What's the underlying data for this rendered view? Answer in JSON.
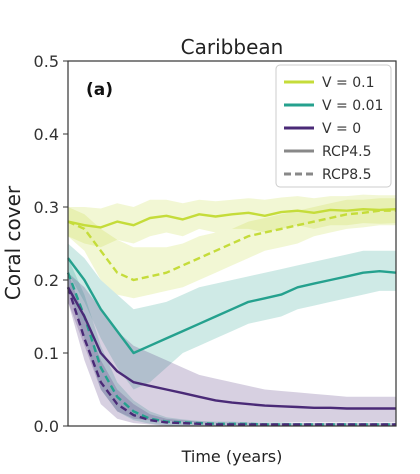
{
  "chart_data": {
    "type": "line",
    "title": "Caribbean",
    "panel_label": "(a)",
    "xlabel": "Time (years)",
    "ylabel": "Coral cover",
    "ylim": [
      0,
      0.5
    ],
    "yticks": [
      "0.0",
      "0.1",
      "0.2",
      "0.3",
      "0.4",
      "0.5"
    ],
    "x": [
      0,
      5,
      10,
      15,
      20,
      25,
      30,
      35,
      40,
      45,
      50,
      55,
      60,
      65,
      70,
      75,
      80,
      85,
      90,
      95,
      100
    ],
    "grid": false,
    "legend_placement": "top-right",
    "legend": [
      {
        "label": "V = 0.1",
        "color": "#c5dc3a",
        "style": "solid"
      },
      {
        "label": "V = 0.01",
        "color": "#25a18e",
        "style": "solid"
      },
      {
        "label": "V = 0",
        "color": "#4a2a77",
        "style": "solid"
      },
      {
        "label": "RCP4.5",
        "color": "#888888",
        "style": "solid"
      },
      {
        "label": "RCP8.5",
        "color": "#888888",
        "style": "dashed"
      }
    ],
    "series": [
      {
        "legend_index": 0,
        "scenario_index": 3,
        "color": "#c5dc3a",
        "dashed": false,
        "values": [
          0.28,
          0.275,
          0.272,
          0.28,
          0.275,
          0.285,
          0.288,
          0.283,
          0.29,
          0.287,
          0.29,
          0.292,
          0.288,
          0.293,
          0.295,
          0.292,
          0.296,
          0.295,
          0.297,
          0.296,
          0.297
        ],
        "lower": [
          0.26,
          0.25,
          0.245,
          0.255,
          0.25,
          0.26,
          0.265,
          0.26,
          0.27,
          0.265,
          0.27,
          0.27,
          0.265,
          0.27,
          0.275,
          0.27,
          0.275,
          0.275,
          0.278,
          0.277,
          0.278
        ],
        "upper": [
          0.3,
          0.3,
          0.298,
          0.305,
          0.3,
          0.31,
          0.31,
          0.305,
          0.31,
          0.308,
          0.31,
          0.312,
          0.31,
          0.313,
          0.315,
          0.312,
          0.315,
          0.315,
          0.317,
          0.316,
          0.316
        ]
      },
      {
        "legend_index": 0,
        "scenario_index": 4,
        "color": "#c5dc3a",
        "dashed": true,
        "values": [
          0.28,
          0.27,
          0.24,
          0.21,
          0.2,
          0.205,
          0.21,
          0.22,
          0.23,
          0.24,
          0.25,
          0.26,
          0.265,
          0.27,
          0.275,
          0.28,
          0.285,
          0.29,
          0.292,
          0.295,
          0.295
        ],
        "lower": [
          0.26,
          0.24,
          0.2,
          0.18,
          0.175,
          0.18,
          0.185,
          0.19,
          0.2,
          0.21,
          0.22,
          0.23,
          0.24,
          0.245,
          0.25,
          0.26,
          0.265,
          0.27,
          0.272,
          0.275,
          0.275
        ],
        "upper": [
          0.3,
          0.29,
          0.27,
          0.255,
          0.245,
          0.245,
          0.245,
          0.25,
          0.26,
          0.265,
          0.27,
          0.28,
          0.285,
          0.29,
          0.295,
          0.3,
          0.305,
          0.31,
          0.31,
          0.312,
          0.312
        ]
      },
      {
        "legend_index": 1,
        "scenario_index": 3,
        "color": "#25a18e",
        "dashed": false,
        "values": [
          0.23,
          0.2,
          0.16,
          0.13,
          0.1,
          0.11,
          0.12,
          0.13,
          0.14,
          0.15,
          0.16,
          0.17,
          0.175,
          0.18,
          0.19,
          0.195,
          0.2,
          0.205,
          0.21,
          0.212,
          0.21
        ],
        "lower": [
          0.21,
          0.17,
          0.12,
          0.08,
          0.05,
          0.06,
          0.08,
          0.1,
          0.11,
          0.12,
          0.13,
          0.14,
          0.145,
          0.15,
          0.16,
          0.165,
          0.17,
          0.175,
          0.18,
          0.185,
          0.185
        ],
        "upper": [
          0.25,
          0.23,
          0.2,
          0.18,
          0.16,
          0.165,
          0.17,
          0.18,
          0.19,
          0.195,
          0.2,
          0.205,
          0.21,
          0.215,
          0.22,
          0.225,
          0.23,
          0.235,
          0.24,
          0.24,
          0.24
        ]
      },
      {
        "legend_index": 1,
        "scenario_index": 4,
        "color": "#25a18e",
        "dashed": true,
        "values": [
          0.21,
          0.15,
          0.08,
          0.04,
          0.02,
          0.01,
          0.006,
          0.005,
          0.004,
          0.003,
          0.003,
          0.003,
          0.002,
          0.002,
          0.002,
          0.002,
          0.002,
          0.002,
          0.002,
          0.002,
          0.002
        ],
        "lower": [
          0.19,
          0.12,
          0.05,
          0.02,
          0.008,
          0.003,
          0.001,
          0.0,
          0.0,
          0.0,
          0.0,
          0.0,
          0.0,
          0.0,
          0.0,
          0.0,
          0.0,
          0.0,
          0.0,
          0.0,
          0.0
        ],
        "upper": [
          0.23,
          0.18,
          0.11,
          0.06,
          0.035,
          0.02,
          0.012,
          0.009,
          0.007,
          0.006,
          0.006,
          0.005,
          0.005,
          0.005,
          0.004,
          0.004,
          0.004,
          0.004,
          0.004,
          0.004,
          0.004
        ]
      },
      {
        "legend_index": 2,
        "scenario_index": 3,
        "color": "#4a2a77",
        "dashed": false,
        "values": [
          0.19,
          0.15,
          0.1,
          0.075,
          0.06,
          0.055,
          0.05,
          0.045,
          0.04,
          0.035,
          0.032,
          0.03,
          0.028,
          0.027,
          0.026,
          0.025,
          0.025,
          0.024,
          0.024,
          0.024,
          0.024
        ],
        "lower": [
          0.17,
          0.11,
          0.05,
          0.02,
          0.01,
          0.008,
          0.007,
          0.006,
          0.005,
          0.005,
          0.005,
          0.005,
          0.005,
          0.005,
          0.005,
          0.005,
          0.005,
          0.005,
          0.005,
          0.005,
          0.005
        ],
        "upper": [
          0.21,
          0.19,
          0.16,
          0.13,
          0.11,
          0.1,
          0.09,
          0.08,
          0.07,
          0.065,
          0.06,
          0.055,
          0.05,
          0.048,
          0.046,
          0.044,
          0.042,
          0.04,
          0.04,
          0.04,
          0.04
        ]
      },
      {
        "legend_index": 2,
        "scenario_index": 4,
        "color": "#4a2a77",
        "dashed": true,
        "values": [
          0.19,
          0.12,
          0.06,
          0.03,
          0.015,
          0.008,
          0.005,
          0.004,
          0.003,
          0.002,
          0.002,
          0.002,
          0.002,
          0.002,
          0.002,
          0.002,
          0.002,
          0.002,
          0.002,
          0.002,
          0.002
        ],
        "lower": [
          0.17,
          0.09,
          0.03,
          0.01,
          0.004,
          0.002,
          0.0,
          0.0,
          0.0,
          0.0,
          0.0,
          0.0,
          0.0,
          0.0,
          0.0,
          0.0,
          0.0,
          0.0,
          0.0,
          0.0,
          0.0
        ],
        "upper": [
          0.21,
          0.15,
          0.09,
          0.05,
          0.03,
          0.016,
          0.01,
          0.008,
          0.006,
          0.005,
          0.005,
          0.005,
          0.004,
          0.004,
          0.004,
          0.004,
          0.004,
          0.004,
          0.004,
          0.004,
          0.004
        ]
      }
    ]
  }
}
